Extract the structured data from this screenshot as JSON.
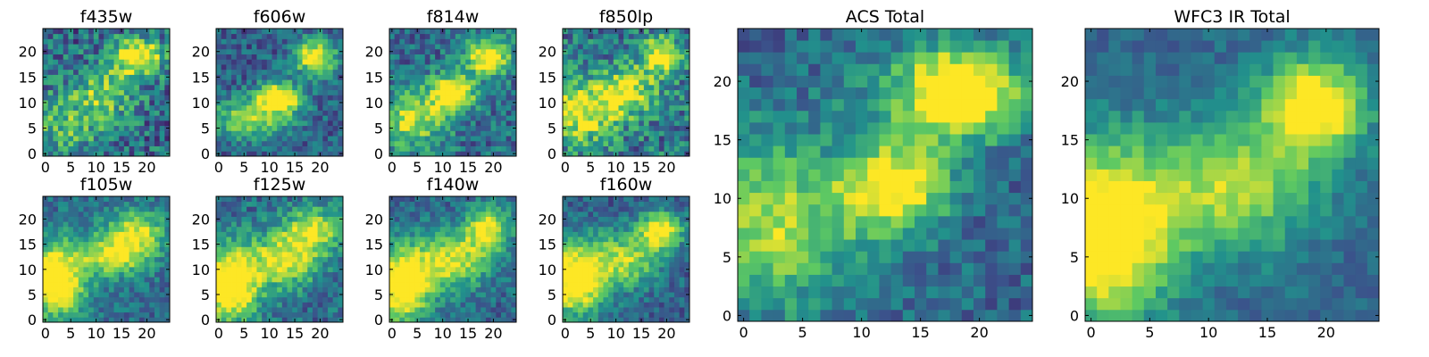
{
  "figure": {
    "colormap": [
      "#440154",
      "#3b528b",
      "#21918c",
      "#5ec962",
      "#fde725"
    ]
  },
  "chart_data": [
    {
      "type": "heatmap",
      "title": "f435w",
      "grid_size": 25,
      "xlim": [
        -0.5,
        24.5
      ],
      "ylim": [
        -0.5,
        24.5
      ],
      "x_ticks": [
        0,
        5,
        10,
        15,
        20
      ],
      "y_ticks": [
        0,
        5,
        10,
        15,
        20
      ],
      "x_tick_labels": [
        "0",
        "5",
        "10",
        "15",
        "20"
      ],
      "y_tick_labels": [
        "0",
        "5",
        "10",
        "15",
        "20"
      ],
      "blobs": [
        {
          "x": 18,
          "y": 19,
          "sx": 3.5,
          "sy": 2.5,
          "amp": 0.8
        },
        {
          "x": 12,
          "y": 12,
          "sx": 4,
          "sy": 3,
          "amp": 0.45
        },
        {
          "x": 4,
          "y": 6,
          "sx": 6,
          "sy": 4,
          "amp": 0.35
        }
      ],
      "base": 0.35,
      "noise": 0.5
    },
    {
      "type": "heatmap",
      "title": "f606w",
      "grid_size": 25,
      "xlim": [
        -0.5,
        24.5
      ],
      "ylim": [
        -0.5,
        24.5
      ],
      "x_ticks": [
        0,
        5,
        10,
        15,
        20
      ],
      "y_ticks": [
        0,
        5,
        10,
        15,
        20
      ],
      "x_tick_labels": [
        "0",
        "5",
        "10",
        "15",
        "20"
      ],
      "y_tick_labels": [
        "0",
        "5",
        "10",
        "15",
        "20"
      ],
      "blobs": [
        {
          "x": 19,
          "y": 19,
          "sx": 3,
          "sy": 2.5,
          "amp": 0.75
        },
        {
          "x": 12,
          "y": 11,
          "sx": 3,
          "sy": 2,
          "amp": 0.85
        },
        {
          "x": 6,
          "y": 7,
          "sx": 6,
          "sy": 3,
          "amp": 0.5
        }
      ],
      "base": 0.3,
      "noise": 0.35
    },
    {
      "type": "heatmap",
      "title": "f814w",
      "grid_size": 25,
      "xlim": [
        -0.5,
        24.5
      ],
      "ylim": [
        -0.5,
        24.5
      ],
      "x_ticks": [
        0,
        5,
        10,
        15,
        20
      ],
      "y_ticks": [
        0,
        5,
        10,
        15,
        20
      ],
      "x_tick_labels": [
        "0",
        "5",
        "10",
        "15",
        "20"
      ],
      "y_tick_labels": [
        "0",
        "5",
        "10",
        "15",
        "20"
      ],
      "blobs": [
        {
          "x": 19,
          "y": 19,
          "sx": 3,
          "sy": 2.5,
          "amp": 0.8
        },
        {
          "x": 12,
          "y": 12,
          "sx": 3,
          "sy": 2.5,
          "amp": 0.8
        },
        {
          "x": 4,
          "y": 7,
          "sx": 5,
          "sy": 4,
          "amp": 0.55
        }
      ],
      "base": 0.35,
      "noise": 0.4
    },
    {
      "type": "heatmap",
      "title": "f850lp",
      "grid_size": 25,
      "xlim": [
        -0.5,
        24.5
      ],
      "ylim": [
        -0.5,
        24.5
      ],
      "x_ticks": [
        0,
        5,
        10,
        15,
        20
      ],
      "y_ticks": [
        0,
        5,
        10,
        15,
        20
      ],
      "x_tick_labels": [
        "0",
        "5",
        "10",
        "15",
        "20"
      ],
      "y_tick_labels": [
        "0",
        "5",
        "10",
        "15",
        "20"
      ],
      "blobs": [
        {
          "x": 19,
          "y": 19,
          "sx": 3,
          "sy": 2.5,
          "amp": 0.7
        },
        {
          "x": 12,
          "y": 12,
          "sx": 4,
          "sy": 3,
          "amp": 0.6
        },
        {
          "x": 3,
          "y": 8,
          "sx": 5,
          "sy": 4,
          "amp": 0.6
        }
      ],
      "base": 0.4,
      "noise": 0.5
    },
    {
      "type": "heatmap",
      "title": "f105w",
      "grid_size": 25,
      "xlim": [
        -0.5,
        24.5
      ],
      "ylim": [
        -0.5,
        24.5
      ],
      "x_ticks": [
        0,
        5,
        10,
        15,
        20
      ],
      "y_ticks": [
        0,
        5,
        10,
        15,
        20
      ],
      "x_tick_labels": [
        "0",
        "5",
        "10",
        "15",
        "20"
      ],
      "y_tick_labels": [
        "0",
        "5",
        "10",
        "15",
        "20"
      ],
      "blobs": [
        {
          "x": 2,
          "y": 8,
          "sx": 4,
          "sy": 5,
          "amp": 0.9
        },
        {
          "x": 14,
          "y": 13,
          "sx": 5,
          "sy": 3,
          "amp": 0.6
        },
        {
          "x": 18,
          "y": 18,
          "sx": 4,
          "sy": 3,
          "amp": 0.5
        }
      ],
      "base": 0.35,
      "noise": 0.3
    },
    {
      "type": "heatmap",
      "title": "f125w",
      "grid_size": 25,
      "xlim": [
        -0.5,
        24.5
      ],
      "ylim": [
        -0.5,
        24.5
      ],
      "x_ticks": [
        0,
        5,
        10,
        15,
        20
      ],
      "y_ticks": [
        0,
        5,
        10,
        15,
        20
      ],
      "x_tick_labels": [
        "0",
        "5",
        "10",
        "15",
        "20"
      ],
      "y_tick_labels": [
        "0",
        "5",
        "10",
        "15",
        "20"
      ],
      "blobs": [
        {
          "x": 2,
          "y": 7,
          "sx": 4,
          "sy": 5,
          "amp": 0.95
        },
        {
          "x": 13,
          "y": 12,
          "sx": 5,
          "sy": 4,
          "amp": 0.6
        },
        {
          "x": 19,
          "y": 18,
          "sx": 4,
          "sy": 3,
          "amp": 0.55
        }
      ],
      "base": 0.35,
      "noise": 0.35
    },
    {
      "type": "heatmap",
      "title": "f140w",
      "grid_size": 25,
      "xlim": [
        -0.5,
        24.5
      ],
      "ylim": [
        -0.5,
        24.5
      ],
      "x_ticks": [
        0,
        5,
        10,
        15,
        20
      ],
      "y_ticks": [
        0,
        5,
        10,
        15,
        20
      ],
      "x_tick_labels": [
        "0",
        "5",
        "10",
        "15",
        "20"
      ],
      "y_tick_labels": [
        "0",
        "5",
        "10",
        "15",
        "20"
      ],
      "blobs": [
        {
          "x": 2,
          "y": 7,
          "sx": 4,
          "sy": 5,
          "amp": 0.9
        },
        {
          "x": 12,
          "y": 12,
          "sx": 5,
          "sy": 4,
          "amp": 0.6
        },
        {
          "x": 19,
          "y": 18,
          "sx": 3,
          "sy": 3,
          "amp": 0.65
        }
      ],
      "base": 0.33,
      "noise": 0.3
    },
    {
      "type": "heatmap",
      "title": "f160w",
      "grid_size": 25,
      "xlim": [
        -0.5,
        24.5
      ],
      "ylim": [
        -0.5,
        24.5
      ],
      "x_ticks": [
        0,
        5,
        10,
        15,
        20
      ],
      "y_ticks": [
        0,
        5,
        10,
        15,
        20
      ],
      "x_tick_labels": [
        "0",
        "5",
        "10",
        "15",
        "20"
      ],
      "y_tick_labels": [
        "0",
        "5",
        "10",
        "15",
        "20"
      ],
      "blobs": [
        {
          "x": 2,
          "y": 8,
          "sx": 4,
          "sy": 5,
          "amp": 0.9
        },
        {
          "x": 12,
          "y": 12,
          "sx": 5,
          "sy": 4,
          "amp": 0.55
        },
        {
          "x": 19,
          "y": 18,
          "sx": 3,
          "sy": 2.5,
          "amp": 0.75
        }
      ],
      "base": 0.3,
      "noise": 0.3
    },
    {
      "type": "heatmap",
      "title": "ACS Total",
      "grid_size": 25,
      "xlim": [
        -0.5,
        24.5
      ],
      "ylim": [
        -0.5,
        24.5
      ],
      "x_ticks": [
        0,
        5,
        10,
        15,
        20
      ],
      "y_ticks": [
        0,
        5,
        10,
        15,
        20
      ],
      "x_tick_labels": [
        "0",
        "5",
        "10",
        "15",
        "20"
      ],
      "y_tick_labels": [
        "0",
        "5",
        "10",
        "15",
        "20"
      ],
      "blobs": [
        {
          "x": 19,
          "y": 19,
          "sx": 3,
          "sy": 2.5,
          "amp": 0.85
        },
        {
          "x": 13,
          "y": 11,
          "sx": 3,
          "sy": 2.5,
          "amp": 0.75
        },
        {
          "x": 2,
          "y": 8,
          "sx": 6,
          "sy": 5,
          "amp": 0.55
        },
        {
          "x": 15,
          "y": 19,
          "sx": 4,
          "sy": 3,
          "amp": 0.3
        }
      ],
      "base": 0.33,
      "noise": 0.3
    },
    {
      "type": "heatmap",
      "title": "WFC3 IR Total",
      "grid_size": 25,
      "xlim": [
        -0.5,
        24.5
      ],
      "ylim": [
        -0.5,
        24.5
      ],
      "x_ticks": [
        0,
        5,
        10,
        15,
        20
      ],
      "y_ticks": [
        0,
        5,
        10,
        15,
        20
      ],
      "x_tick_labels": [
        "0",
        "5",
        "10",
        "15",
        "20"
      ],
      "y_tick_labels": [
        "0",
        "5",
        "10",
        "15",
        "20"
      ],
      "blobs": [
        {
          "x": 1,
          "y": 7,
          "sx": 4,
          "sy": 5,
          "amp": 0.95
        },
        {
          "x": 12,
          "y": 11,
          "sx": 5,
          "sy": 4,
          "amp": 0.55
        },
        {
          "x": 19,
          "y": 18,
          "sx": 3,
          "sy": 3,
          "amp": 0.8
        }
      ],
      "base": 0.33,
      "noise": 0.2
    }
  ]
}
